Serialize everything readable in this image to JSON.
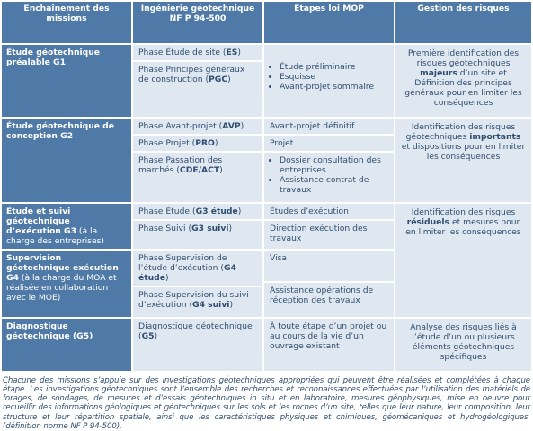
{
  "headers": [
    "Enchaînement des missions",
    "Ingénierie géotechnique NF P 94-500",
    "Étapes loi MOP",
    "Gestion des risques"
  ],
  "rows": {
    "g1": {
      "mission": {
        "pre": "Étude géotechnique préalable ",
        "code": "G1",
        "post": ""
      },
      "phases": [
        {
          "pre": "Phase Étude de site (",
          "code": "ES",
          "post": ")"
        },
        {
          "pre": "Phase Principes généraux de construction (",
          "code": "PGC",
          "post": ")"
        }
      ],
      "moe": [
        "Étude préliminaire",
        "Esquisse",
        "Avant-projet sommaire"
      ],
      "risk": {
        "pre": "Première identification des risques géotechniques ",
        "strong": "majeurs",
        "post": " d’un site et Définition des principes généraux pour en limiter les conséquences"
      }
    },
    "g2": {
      "mission": {
        "pre": "Étude géotechnique de conception ",
        "code": "G2",
        "post": ""
      },
      "phases": [
        {
          "pre": "Phase Avant-projet (",
          "code": "AVP",
          "post": ")"
        },
        {
          "pre": "Phase Projet (",
          "code": "PRO",
          "post": ")"
        },
        {
          "pre": "Phase Passation des marchés (",
          "code": "CDE/ACT",
          "post": ")"
        }
      ],
      "moe": {
        "avp": "Avant-projet définitif",
        "pro": "Projet",
        "act": [
          "Dossier consultation des entreprises",
          "Assistance contrat de travaux"
        ]
      },
      "risk": {
        "pre": "Identification des risques géotechniques ",
        "strong": "importants",
        "post": " et dispositions pour en limiter les conséquences"
      }
    },
    "g3": {
      "mission": {
        "pre": "Étude et suivi géotechnique d’exécution ",
        "code": "G3",
        "post": " (à la charge des entreprises)"
      },
      "phases": [
        {
          "pre": "Phase Étude (",
          "code": "G3 étude",
          "post": ")"
        },
        {
          "pre": "Phase Suivi (",
          "code": "G3 suivi",
          "post": ")"
        }
      ],
      "moe": [
        "Études d’exécution",
        "Direction exécution des travaux"
      ],
      "risk": {
        "pre": "Identification des risques ",
        "strong": "résiduels",
        "post": " et mesures pour en limiter les conséquences"
      }
    },
    "g4": {
      "mission": {
        "pre": "Supervision géotechnique exécution ",
        "code": "G4",
        "post": " (à la charge du MOA et réalisée en collaboration avec le MOE)"
      },
      "phases": [
        {
          "pre": "Phase Supervision de l’étude d’exécution (",
          "code": "G4 étude",
          "post": ")"
        },
        {
          "pre": "Phase Supervision du suivi d’exécution (",
          "code": "G4 suivi",
          "post": ")"
        }
      ],
      "moe": [
        "Visa",
        "Assistance opérations de réception des travaux"
      ]
    },
    "g5": {
      "mission": {
        "pre": "Diagnostique géotechnique (",
        "code": "G5",
        "post": ")"
      },
      "phase": {
        "pre": "Diagnostique géotechnique (",
        "code": "G5",
        "post": ")"
      },
      "moe": "À toute étape d’un projet ou au cours de la vie d’un ouvrage existant",
      "risk": "Analyse des risques liés à l’étude d’un ou plusieurs éléments géotechniques spécifiques"
    }
  },
  "caption": "Chacune des missions s’appuie sur des investigations géotechniques appropriées qui peuvent être réalisées et complétées à chaque étape. Les investigations géotechniques sont l’ensemble des recherches et reconnaissances effectuées par l’utilisation des matériels de forages, de sondages, de mesures et d’essais géotechniques in situ et en laboratoire, mesures géophysiques, mise en oeuvre pour recueillir des informations géologiques et géotechniques sur les sols et les roches d’un site, telles que leur nature, leur composition, leur structure et leur répartition spatiale, ainsi que les caractéristiques physiques et chimiques, géomécaniques et hydrogéologiques. (définition norme NF P 94-500)."
}
